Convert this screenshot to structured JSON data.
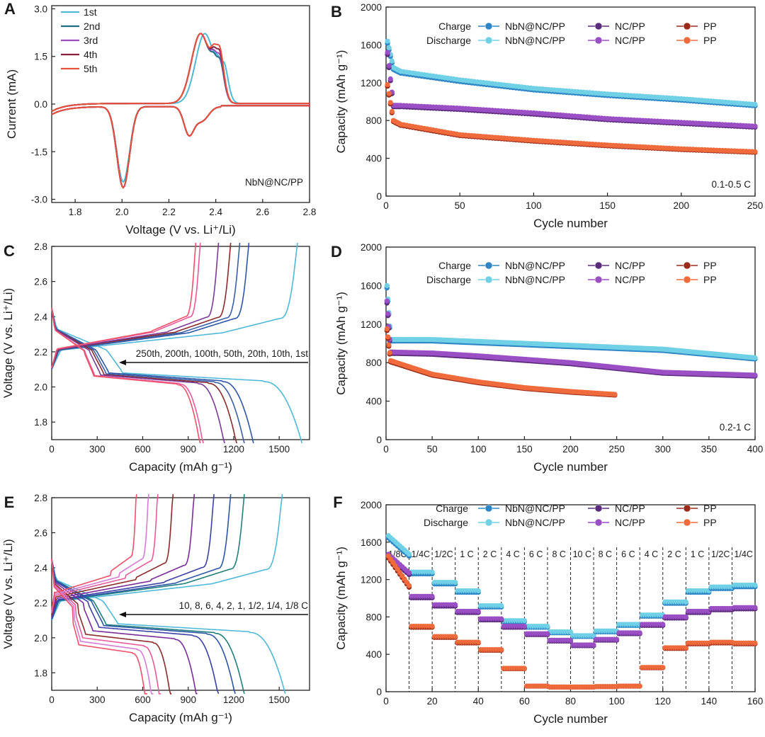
{
  "figure_note": "Six-panel electrochemistry figure (A–F) for NbN@NC/PP, NC/PP and PP separators",
  "colors": {
    "charge_nbn": "#2f86c6",
    "discharge_nbn": "#6fd0e6",
    "charge_nc": "#5b2c7e",
    "discharge_nc": "#9b4fc4",
    "charge_pp": "#9a2a1a",
    "discharge_pp": "#ef6b3c"
  },
  "chart_data": [
    {
      "panel": "A",
      "type": "line",
      "title": "",
      "xlabel": "Voltage (V vs. Li⁺/Li)",
      "ylabel": "Current  (mA)",
      "xlim": [
        1.7,
        2.8
      ],
      "ylim": [
        -3.1,
        3.1
      ],
      "xticks": [
        "1.8",
        "2.0",
        "2.2",
        "2.4",
        "2.6",
        "2.8"
      ],
      "yticks": [
        "-3.0",
        "-1.5",
        "0.0",
        "1.5",
        "3.0"
      ],
      "legend_position": "top-left",
      "annotation": "NbN@NC/PP",
      "series": [
        {
          "name": "1st",
          "color": "#4fb8d8"
        },
        {
          "name": "2nd",
          "color": "#1f6f80"
        },
        {
          "name": "3rd",
          "color": "#a04ac2"
        },
        {
          "name": "4th",
          "color": "#8a1f3a"
        },
        {
          "name": "5th",
          "color": "#e8503c"
        }
      ]
    },
    {
      "panel": "B",
      "type": "scatter",
      "xlabel": "Cycle number",
      "ylabel": "Capacity (mAh g⁻¹)",
      "xlim": [
        0,
        250
      ],
      "ylim": [
        0,
        2000
      ],
      "xticks": [
        "0",
        "50",
        "100",
        "150",
        "200",
        "250"
      ],
      "yticks": [
        "0",
        "400",
        "800",
        "1200",
        "1600",
        "2000"
      ],
      "legend_rows": [
        "Charge",
        "Discharge"
      ],
      "legend_position": "top",
      "annotation": "0.1-0.5 C",
      "series": [
        {
          "name": "NbN@NC/PP",
          "x": [
            1,
            5,
            10,
            50,
            100,
            150,
            200,
            250
          ],
          "y": [
            1640,
            1360,
            1320,
            1230,
            1140,
            1080,
            1030,
            970
          ]
        },
        {
          "name": "NC/PP",
          "x": [
            1,
            5,
            10,
            50,
            100,
            150,
            200,
            250
          ],
          "y": [
            1520,
            960,
            960,
            930,
            880,
            820,
            780,
            740
          ]
        },
        {
          "name": "PP",
          "x": [
            1,
            5,
            10,
            50,
            100,
            150,
            200,
            250
          ],
          "y": [
            1180,
            800,
            760,
            650,
            590,
            540,
            500,
            470
          ]
        }
      ]
    },
    {
      "panel": "C",
      "type": "line",
      "xlabel": "Capacity (mAh g⁻¹)",
      "ylabel": "Voltage (V vs. Li⁺/Li)",
      "xlim": [
        0,
        1700
      ],
      "ylim": [
        1.7,
        2.8
      ],
      "xticks": [
        "0",
        "300",
        "600",
        "900",
        "1200",
        "1500"
      ],
      "yticks": [
        "1.8",
        "2.0",
        "2.2",
        "2.4",
        "2.6",
        "2.8"
      ],
      "annotation": "250th, 200th, 100th, 50th, 20th, 10th, 1st",
      "series": [
        {
          "name": "1st",
          "discharge_capacity": 1650,
          "charge_capacity": 1620
        },
        {
          "name": "10th",
          "discharge_capacity": 1330,
          "charge_capacity": 1300
        },
        {
          "name": "20th",
          "discharge_capacity": 1270,
          "charge_capacity": 1240
        },
        {
          "name": "50th",
          "discharge_capacity": 1220,
          "charge_capacity": 1180
        },
        {
          "name": "100th",
          "discharge_capacity": 1140,
          "charge_capacity": 1100
        },
        {
          "name": "200th",
          "discharge_capacity": 1000,
          "charge_capacity": 980
        },
        {
          "name": "250th",
          "discharge_capacity": 980,
          "charge_capacity": 950
        }
      ]
    },
    {
      "panel": "D",
      "type": "scatter",
      "xlabel": "Cycle number",
      "ylabel": "Capacity (mAh g⁻¹)",
      "xlim": [
        0,
        400
      ],
      "ylim": [
        0,
        2000
      ],
      "xticks": [
        "0",
        "50",
        "100",
        "150",
        "200",
        "250",
        "300",
        "350",
        "400"
      ],
      "yticks": [
        "0",
        "400",
        "800",
        "1200",
        "1600",
        "2000"
      ],
      "legend_rows": [
        "Charge",
        "Discharge"
      ],
      "annotation": "0.2-1 C",
      "series": [
        {
          "name": "NbN@NC/PP",
          "x": [
            1,
            5,
            50,
            100,
            200,
            300,
            400
          ],
          "y": [
            1600,
            1040,
            1040,
            1020,
            980,
            940,
            850
          ]
        },
        {
          "name": "NC/PP",
          "x": [
            1,
            5,
            50,
            100,
            200,
            300,
            400
          ],
          "y": [
            1440,
            910,
            900,
            870,
            800,
            700,
            670
          ]
        },
        {
          "name": "PP",
          "x": [
            1,
            5,
            50,
            100,
            150,
            200,
            248
          ],
          "y": [
            1150,
            820,
            680,
            600,
            540,
            500,
            470
          ]
        }
      ]
    },
    {
      "panel": "E",
      "type": "line",
      "xlabel": "Capacity (mAh g⁻¹)",
      "ylabel": "Voltage (V vs. Li⁺/Li)",
      "xlim": [
        0,
        1700
      ],
      "ylim": [
        1.7,
        2.8
      ],
      "xticks": [
        "0",
        "300",
        "600",
        "900",
        "1200",
        "1500"
      ],
      "yticks": [
        "1.8",
        "2.0",
        "2.2",
        "2.4",
        "2.6",
        "2.8"
      ],
      "annotation": "10, 8, 6, 4, 2, 1, 1/2, 1/4, 1/8 C",
      "series": [
        {
          "name": "1/8 C",
          "discharge_capacity": 1540,
          "charge_capacity": 1520
        },
        {
          "name": "1/4 C",
          "discharge_capacity": 1270,
          "charge_capacity": 1270
        },
        {
          "name": "1/2 C",
          "discharge_capacity": 1210,
          "charge_capacity": 1180
        },
        {
          "name": "1 C",
          "discharge_capacity": 1100,
          "charge_capacity": 1070
        },
        {
          "name": "2 C",
          "discharge_capacity": 960,
          "charge_capacity": 940
        },
        {
          "name": "4 C",
          "discharge_capacity": 790,
          "charge_capacity": 800
        },
        {
          "name": "6 C",
          "discharge_capacity": 720,
          "charge_capacity": 700
        },
        {
          "name": "8 C",
          "discharge_capacity": 670,
          "charge_capacity": 640
        },
        {
          "name": "10 C",
          "discharge_capacity": 630,
          "charge_capacity": 560
        }
      ]
    },
    {
      "panel": "F",
      "type": "scatter",
      "xlabel": "Cycle number",
      "ylabel": "Capacity (mAh g⁻¹)",
      "xlim": [
        0,
        160
      ],
      "ylim": [
        0,
        2000
      ],
      "xticks": [
        "0",
        "20",
        "40",
        "60",
        "80",
        "100",
        "120",
        "140",
        "160"
      ],
      "yticks": [
        "0",
        "400",
        "800",
        "1200",
        "1600",
        "2000"
      ],
      "legend_rows": [
        "Charge",
        "Discharge"
      ],
      "rate_labels": [
        "1/8C",
        "1/4C",
        "1/2C",
        "1 C",
        "2 C",
        "4 C",
        "6 C",
        "8 C",
        "10 C",
        "8 C",
        "6 C",
        "4 C",
        "2 C",
        "1 C",
        "1/2C",
        "1/4C"
      ],
      "series": [
        {
          "name": "NbN@NC/PP",
          "segment_values": [
            1450,
            1280,
            1170,
            1080,
            920,
            760,
            700,
            640,
            600,
            650,
            720,
            820,
            960,
            1080,
            1120,
            1140
          ]
        },
        {
          "name": "NC/PP",
          "segment_values": [
            1250,
            1020,
            930,
            860,
            780,
            700,
            620,
            550,
            500,
            560,
            630,
            720,
            800,
            860,
            890,
            900
          ]
        },
        {
          "name": "PP",
          "segment_values": [
            1100,
            700,
            590,
            530,
            450,
            250,
            60,
            50,
            50,
            55,
            60,
            260,
            470,
            520,
            530,
            520
          ]
        }
      ]
    }
  ],
  "legend_names": {
    "nbn": "NbN@NC/PP",
    "nc": "NC/PP",
    "pp": "PP"
  }
}
